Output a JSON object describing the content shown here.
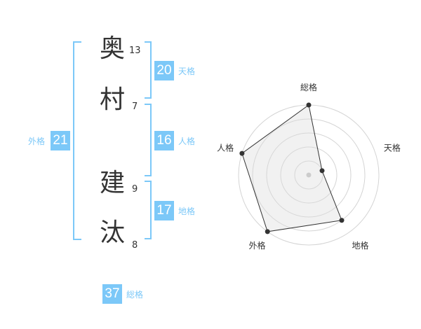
{
  "name_chars": [
    {
      "char": "奥",
      "strokes": "13"
    },
    {
      "char": "村",
      "strokes": "7"
    },
    {
      "char": "建",
      "strokes": "9"
    },
    {
      "char": "汰",
      "strokes": "8"
    }
  ],
  "fortunes": {
    "tenkaku": {
      "label": "天格",
      "value": "20"
    },
    "jinkaku": {
      "label": "人格",
      "value": "16"
    },
    "chikaku": {
      "label": "地格",
      "value": "17"
    },
    "gaikaku": {
      "label": "外格",
      "value": "21"
    },
    "soukaku": {
      "label": "総格",
      "value": "37"
    }
  },
  "accent_color": "#7cc8f8",
  "chart_data": {
    "type": "radar",
    "axes": [
      "総格",
      "天格",
      "地格",
      "外格",
      "人格"
    ],
    "values": [
      5,
      1,
      4,
      5,
      5
    ],
    "range": [
      0,
      5
    ],
    "rings": 5
  }
}
